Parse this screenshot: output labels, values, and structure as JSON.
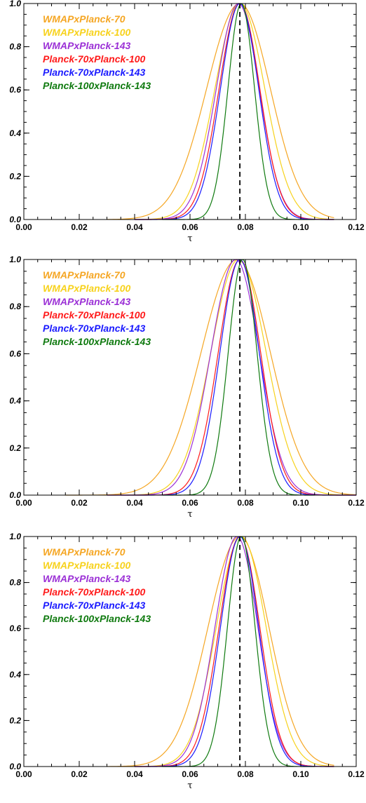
{
  "colors": {
    "WMAPxPlanck-70": "#f5a623",
    "WMAPxPlanck-100": "#f7d21c",
    "WMAPxPlanck-143": "#9b30d6",
    "Planck-70xPlanck-100": "#ff1a1a",
    "Planck-70xPlanck-143": "#1a1aff",
    "Planck-100xPlanck-143": "#0f7a0f"
  },
  "chart_data": [
    {
      "type": "line",
      "title": "",
      "xlabel": "τ",
      "ylabel": "",
      "xlim": [
        0.0,
        0.12
      ],
      "ylim": [
        0.0,
        1.0
      ],
      "x_ticks": [
        "0.00",
        "0.02",
        "0.04",
        "0.06",
        "0.08",
        "0.10",
        "0.12"
      ],
      "y_ticks": [
        "0.0",
        "0.2",
        "0.4",
        "0.6",
        "0.8",
        "1.0"
      ],
      "reference_line_x": 0.078,
      "legend_position": "top-left",
      "grid": false,
      "series": [
        {
          "name": "WMAPxPlanck-70",
          "shape": "gaussian",
          "peak_x": 0.078,
          "sigma_left": 0.012,
          "sigma_right": 0.011,
          "x_range": [
            0.03,
            0.112
          ]
        },
        {
          "name": "WMAPxPlanck-100",
          "shape": "gaussian",
          "peak_x": 0.078,
          "sigma_left": 0.009,
          "sigma_right": 0.009,
          "x_range": [
            0.04,
            0.112
          ]
        },
        {
          "name": "WMAPxPlanck-143",
          "shape": "gaussian",
          "peak_x": 0.0775,
          "sigma_left": 0.008,
          "sigma_right": 0.0075,
          "x_range": [
            0.04,
            0.112
          ]
        },
        {
          "name": "Planck-70xPlanck-100",
          "shape": "gaussian",
          "peak_x": 0.078,
          "sigma_left": 0.0075,
          "sigma_right": 0.0072,
          "x_range": [
            0.04,
            0.112
          ]
        },
        {
          "name": "Planck-70xPlanck-143",
          "shape": "gaussian",
          "peak_x": 0.078,
          "sigma_left": 0.007,
          "sigma_right": 0.0068,
          "x_range": [
            0.04,
            0.112
          ]
        },
        {
          "name": "Planck-100xPlanck-143",
          "shape": "gaussian",
          "peak_x": 0.0785,
          "sigma_left": 0.0048,
          "sigma_right": 0.0048,
          "x_range": [
            0.05,
            0.105
          ]
        }
      ]
    },
    {
      "type": "line",
      "title": "",
      "xlabel": "τ",
      "ylabel": "",
      "xlim": [
        0.0,
        0.12
      ],
      "ylim": [
        0.0,
        1.0
      ],
      "x_ticks": [
        "0.00",
        "0.02",
        "0.04",
        "0.06",
        "0.08",
        "0.10",
        "0.12"
      ],
      "y_ticks": [
        "0.0",
        "0.2",
        "0.4",
        "0.6",
        "0.8",
        "1.0"
      ],
      "reference_line_x": 0.078,
      "legend_position": "top-left",
      "grid": false,
      "series": [
        {
          "name": "WMAPxPlanck-70",
          "shape": "gaussian",
          "peak_x": 0.077,
          "sigma_left": 0.013,
          "sigma_right": 0.012,
          "x_range": [
            0.015,
            0.12
          ]
        },
        {
          "name": "WMAPxPlanck-100",
          "shape": "gaussian",
          "peak_x": 0.0775,
          "sigma_left": 0.01,
          "sigma_right": 0.01,
          "x_range": [
            0.035,
            0.12
          ]
        },
        {
          "name": "WMAPxPlanck-143",
          "shape": "gaussian",
          "peak_x": 0.0765,
          "sigma_left": 0.009,
          "sigma_right": 0.0085,
          "x_range": [
            0.035,
            0.12
          ]
        },
        {
          "name": "Planck-70xPlanck-100",
          "shape": "gaussian",
          "peak_x": 0.078,
          "sigma_left": 0.0078,
          "sigma_right": 0.0075,
          "x_range": [
            0.03,
            0.12
          ]
        },
        {
          "name": "Planck-70xPlanck-143",
          "shape": "gaussian",
          "peak_x": 0.078,
          "sigma_left": 0.0072,
          "sigma_right": 0.007,
          "x_range": [
            0.03,
            0.12
          ]
        },
        {
          "name": "Planck-100xPlanck-143",
          "shape": "gaussian",
          "peak_x": 0.079,
          "sigma_left": 0.0052,
          "sigma_right": 0.0052,
          "x_range": [
            0.05,
            0.105
          ]
        }
      ]
    },
    {
      "type": "line",
      "title": "",
      "xlabel": "τ",
      "ylabel": "",
      "xlim": [
        0.0,
        0.12
      ],
      "ylim": [
        0.0,
        1.0
      ],
      "x_ticks": [
        "0.00",
        "0.02",
        "0.04",
        "0.06",
        "0.08",
        "0.10",
        "0.12"
      ],
      "y_ticks": [
        "0.0",
        "0.2",
        "0.4",
        "0.6",
        "0.8",
        "1.0"
      ],
      "reference_line_x": 0.078,
      "legend_position": "top-left",
      "grid": false,
      "series": [
        {
          "name": "WMAPxPlanck-70",
          "shape": "gaussian",
          "peak_x": 0.078,
          "sigma_left": 0.0115,
          "sigma_right": 0.0105,
          "x_range": [
            0.03,
            0.112
          ]
        },
        {
          "name": "WMAPxPlanck-100",
          "shape": "gaussian",
          "peak_x": 0.0785,
          "sigma_left": 0.009,
          "sigma_right": 0.009,
          "x_range": [
            0.04,
            0.112
          ]
        },
        {
          "name": "WMAPxPlanck-143",
          "shape": "gaussian",
          "peak_x": 0.077,
          "sigma_left": 0.008,
          "sigma_right": 0.0075,
          "x_range": [
            0.04,
            0.112
          ]
        },
        {
          "name": "Planck-70xPlanck-100",
          "shape": "gaussian",
          "peak_x": 0.078,
          "sigma_left": 0.0075,
          "sigma_right": 0.0072,
          "x_range": [
            0.04,
            0.112
          ]
        },
        {
          "name": "Planck-70xPlanck-143",
          "shape": "gaussian",
          "peak_x": 0.078,
          "sigma_left": 0.007,
          "sigma_right": 0.0068,
          "x_range": [
            0.04,
            0.112
          ]
        },
        {
          "name": "Planck-100xPlanck-143",
          "shape": "gaussian",
          "peak_x": 0.0785,
          "sigma_left": 0.005,
          "sigma_right": 0.005,
          "x_range": [
            0.05,
            0.105
          ]
        }
      ]
    }
  ]
}
